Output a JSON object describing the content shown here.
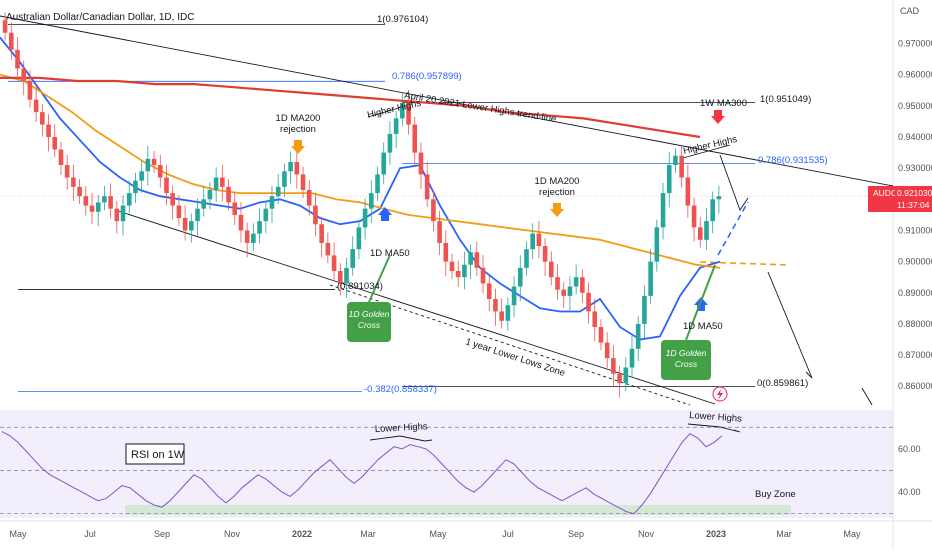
{
  "header": {
    "title": "Australian Dollar/Canadian Dollar, 1D, IDC"
  },
  "currency": "CAD",
  "chart_data": {
    "type": "candlestick",
    "symbol": "AUDCAD",
    "price_label": "0.921030",
    "countdown": "11:37:04",
    "ylim": [
      0.853,
      0.984
    ],
    "price_ticks": [
      "0.970000",
      "0.960000",
      "0.950000",
      "0.940000",
      "0.930000",
      "0.920000",
      "0.910000",
      "0.900000",
      "0.890000",
      "0.880000",
      "0.870000",
      "0.860000"
    ],
    "x_ticks": [
      "May",
      "Jul",
      "Sep",
      "Nov",
      "2022",
      "Mar",
      "May",
      "Jul",
      "Sep",
      "Nov",
      "2023",
      "Mar",
      "May"
    ],
    "candles_close": [
      0.9735,
      0.968,
      0.962,
      0.958,
      0.952,
      0.948,
      0.944,
      0.94,
      0.936,
      0.931,
      0.927,
      0.924,
      0.921,
      0.918,
      0.916,
      0.919,
      0.921,
      0.917,
      0.913,
      0.918,
      0.922,
      0.926,
      0.929,
      0.933,
      0.931,
      0.927,
      0.922,
      0.918,
      0.914,
      0.91,
      0.913,
      0.917,
      0.92,
      0.923,
      0.927,
      0.924,
      0.919,
      0.915,
      0.91,
      0.906,
      0.909,
      0.913,
      0.917,
      0.921,
      0.924,
      0.929,
      0.932,
      0.928,
      0.923,
      0.918,
      0.912,
      0.906,
      0.902,
      0.897,
      0.893,
      0.898,
      0.904,
      0.911,
      0.917,
      0.922,
      0.928,
      0.935,
      0.941,
      0.946,
      0.951,
      0.944,
      0.935,
      0.928,
      0.92,
      0.913,
      0.906,
      0.9,
      0.897,
      0.895,
      0.899,
      0.903,
      0.898,
      0.893,
      0.888,
      0.884,
      0.881,
      0.886,
      0.892,
      0.898,
      0.904,
      0.909,
      0.905,
      0.9,
      0.895,
      0.891,
      0.889,
      0.892,
      0.895,
      0.89,
      0.884,
      0.879,
      0.874,
      0.869,
      0.864,
      0.861,
      0.866,
      0.872,
      0.88,
      0.889,
      0.9,
      0.911,
      0.922,
      0.931,
      0.934,
      0.927,
      0.918,
      0.911,
      0.907,
      0.913,
      0.92,
      0.921
    ],
    "moving_averages": [
      {
        "name": "1D MA50",
        "color": "#2962ff",
        "values": [
          0.972,
          0.964,
          0.955,
          0.946,
          0.939,
          0.932,
          0.927,
          0.923,
          0.921,
          0.92,
          0.919,
          0.918,
          0.917,
          0.919,
          0.92,
          0.918,
          0.914,
          0.912,
          0.913,
          0.917,
          0.93,
          0.931,
          0.918,
          0.907,
          0.898,
          0.893,
          0.889,
          0.885,
          0.884,
          0.884,
          0.888,
          0.879,
          0.875,
          0.876,
          0.889,
          0.898,
          0.9
        ]
      },
      {
        "name": "1D MA200",
        "color": "#f39c12",
        "values": [
          0.96,
          0.958,
          0.953,
          0.948,
          0.942,
          0.937,
          0.932,
          0.928,
          0.925,
          0.923,
          0.922,
          0.922,
          0.922,
          0.922,
          0.92,
          0.919,
          0.917,
          0.915,
          0.914,
          0.913,
          0.912,
          0.911,
          0.91,
          0.909,
          0.908,
          0.907,
          0.905,
          0.903,
          0.901,
          0.899,
          0.898
        ]
      },
      {
        "name": "1W MA300",
        "color": "#e03c31",
        "values": [
          0.959,
          0.959,
          0.958,
          0.958,
          0.957,
          0.957,
          0.956,
          0.955,
          0.954,
          0.953,
          0.952,
          0.951,
          0.95,
          0.948,
          0.947,
          0.946,
          0.944,
          0.942,
          0.94
        ]
      }
    ],
    "fib_levels": [
      {
        "label": "1(0.976104)",
        "value": 0.976104
      },
      {
        "label": "0.786(0.957899)",
        "value": 0.957899
      },
      {
        "label": "1(0.951049)",
        "value": 0.951049
      },
      {
        "label": "0.786(0.931535)",
        "value": 0.931535
      },
      {
        "label": "(0.891034)",
        "value": 0.891034
      },
      {
        "label": "0(0.859861)",
        "value": 0.859861
      },
      {
        "label": "-0.382(0.858337)",
        "value": 0.858337
      }
    ],
    "annotations": {
      "lower_highs_trendline": "April 20 2021 Lower Highs trend-line",
      "higher_highs_1": "Higher Highs",
      "higher_highs_2": "Higher Highs",
      "ma200_rejection_1": "1D MA200\nrejection",
      "ma200_rejection_2": "1D MA200\nrejection",
      "ma50_1": "1D MA50",
      "ma50_2": "1D MA50",
      "w_ma300": "1W MA300",
      "golden_cross_1": "1D Golden\nCross",
      "golden_cross_2": "1D Golden\nCross",
      "lows_zone": "1 year Lower Lows Zone",
      "rsi_lower_highs_1": "Lower Highs",
      "rsi_lower_highs_2": "Lower Highs",
      "rsi_label": "RSI on 1W",
      "buy_zone": "Buy Zone"
    },
    "rsi": {
      "ylim": [
        28,
        78
      ],
      "ticks": [
        "60.00",
        "40.00"
      ],
      "upper": 70,
      "mid": 50,
      "lower": 30,
      "values": [
        68,
        66,
        63,
        59,
        55,
        51,
        48,
        46,
        44,
        42,
        40,
        38,
        36,
        37,
        40,
        43,
        42,
        39,
        36,
        34,
        33,
        36,
        40,
        44,
        48,
        46,
        42,
        38,
        35,
        38,
        42,
        45,
        48,
        46,
        43,
        40,
        38,
        41,
        45,
        49,
        52,
        55,
        51,
        47,
        44,
        47,
        51,
        55,
        58,
        61,
        60,
        62,
        61,
        60,
        57,
        53,
        49,
        45,
        42,
        40,
        43,
        47,
        51,
        55,
        53,
        49,
        45,
        42,
        40,
        38,
        36,
        38,
        40,
        42,
        39,
        37,
        35,
        33,
        31,
        30,
        34,
        39,
        45,
        51,
        57,
        63,
        67,
        65,
        61,
        63,
        66
      ]
    }
  }
}
